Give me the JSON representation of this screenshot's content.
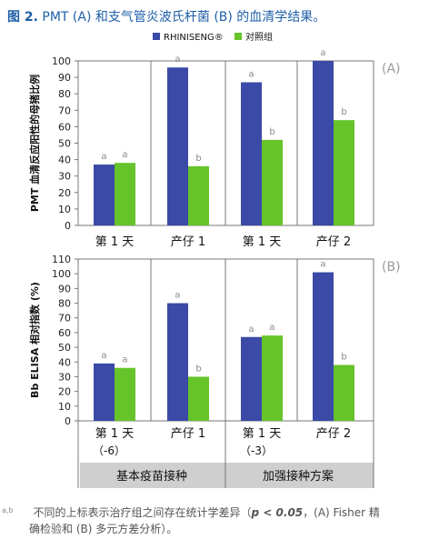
{
  "figure": {
    "label": "图 2.",
    "title": "PMT (A) 和支气管炎波氏杆菌 (B) 的血清学结果。"
  },
  "colors": {
    "series1": "#3a4aa6",
    "series2": "#66c32a",
    "grid": "#777777",
    "panel_label": "#9a9a9a",
    "protocol_band": "#cfcfcf"
  },
  "chart_data": [
    {
      "type": "bar",
      "panel_label": "(A)",
      "ylabel": "PMT 血清反应阳性的母猪比例",
      "ylim": [
        0,
        100
      ],
      "yticks": [
        0,
        10,
        20,
        30,
        40,
        50,
        60,
        70,
        80,
        90,
        100
      ],
      "grid": false,
      "legend": "top",
      "categories": [
        "第 1 天",
        "产仔 1",
        "第 1 天",
        "产仔 2"
      ],
      "series": [
        {
          "name": "RHINISENG®",
          "values": [
            37,
            96,
            87,
            100
          ],
          "labels": [
            "a",
            "a",
            "a",
            "a"
          ]
        },
        {
          "name": "对照组",
          "values": [
            38,
            36,
            52,
            64
          ],
          "labels": [
            "a",
            "b",
            "b",
            "b"
          ]
        }
      ]
    },
    {
      "type": "bar",
      "panel_label": "(B)",
      "ylabel": "Bb ELISA 相对指数 (%)",
      "ylim": [
        0,
        110
      ],
      "yticks": [
        0,
        10,
        20,
        30,
        40,
        50,
        60,
        70,
        80,
        90,
        100,
        110
      ],
      "grid": false,
      "categories": [
        "第 1 天\n（-6）",
        "产仔 1",
        "第 1 天\n（-3）",
        "产仔 2"
      ],
      "series": [
        {
          "name": "RHINISENG®",
          "values": [
            39,
            80,
            57,
            101
          ],
          "labels": [
            "a",
            "a",
            "a",
            "a"
          ]
        },
        {
          "name": "对照组",
          "values": [
            36,
            30,
            58,
            38
          ],
          "labels": [
            "a",
            "b",
            "a",
            "b"
          ]
        }
      ],
      "groups": [
        "基本疫苗接种",
        "加强接种方案"
      ]
    }
  ],
  "footnote": {
    "superscript": "a,b",
    "text_line1": "不同的上标表示治疗组之间存在统计学差异（",
    "p_value": "p < 0.05",
    "text_line1_end": "，(A) Fisher 精",
    "text_line2": "确检验和 (B) 多元方差分析）。"
  }
}
